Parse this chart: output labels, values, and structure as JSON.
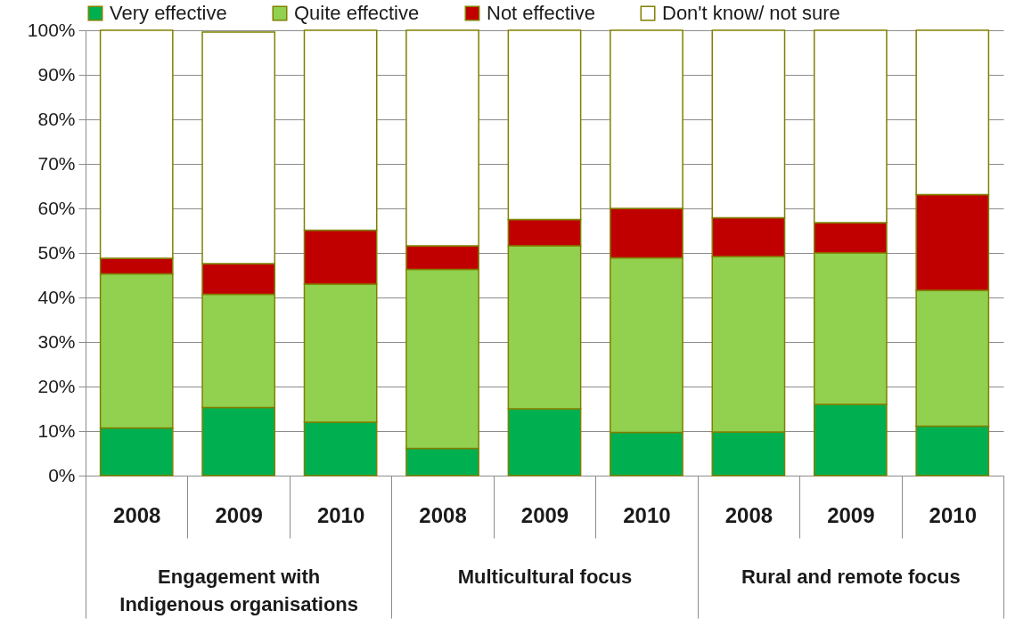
{
  "chart_data": {
    "type": "bar",
    "stacked": true,
    "categories": [
      "2008",
      "2009",
      "2010",
      "2008",
      "2009",
      "2010",
      "2008",
      "2009",
      "2010"
    ],
    "series": [
      {
        "name": "Very effective",
        "color": "#00b050",
        "values": [
          10.7,
          15.3,
          12.0,
          6.1,
          15.0,
          9.7,
          9.8,
          16.0,
          11.1
        ]
      },
      {
        "name": "Quite effective",
        "color": "#92d050",
        "values": [
          34.6,
          25.4,
          31.0,
          40.2,
          36.6,
          39.2,
          39.4,
          34.0,
          30.5
        ]
      },
      {
        "name": "Not effective",
        "color": "#c00000",
        "values": [
          3.5,
          6.9,
          12.1,
          5.3,
          5.9,
          11.1,
          8.7,
          6.8,
          21.5
        ]
      },
      {
        "name": "Don't know/ not sure",
        "color": "#ffffff",
        "values": [
          51.2,
          52.0,
          44.9,
          48.4,
          42.5,
          40.0,
          42.1,
          43.2,
          36.9
        ]
      }
    ],
    "ylim": [
      0,
      100
    ],
    "yticks": [
      {
        "value": 0,
        "label": "0%"
      },
      {
        "value": 10,
        "label": "10%"
      },
      {
        "value": 20,
        "label": "20%"
      },
      {
        "value": 30,
        "label": "30%"
      },
      {
        "value": 40,
        "label": "40%"
      },
      {
        "value": 50,
        "label": "50%"
      },
      {
        "value": 60,
        "label": "60%"
      },
      {
        "value": 70,
        "label": "70%"
      },
      {
        "value": 80,
        "label": "80%"
      },
      {
        "value": 90,
        "label": "90%"
      },
      {
        "value": 100,
        "label": "100%"
      }
    ],
    "grid": "y",
    "legend": "top",
    "annotations": [
      "Engagement with Indigenous organisations",
      "Multicultural focus",
      "Rural and remote focus"
    ]
  }
}
